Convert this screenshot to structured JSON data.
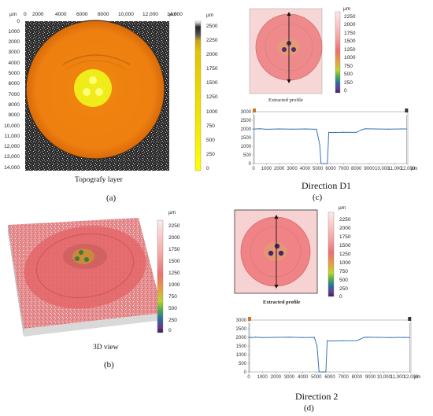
{
  "panel_a": {
    "unit_top": "µm",
    "unit_bar": "µm",
    "x_ticks": [
      "0",
      "2000",
      "4000",
      "6000",
      "8000",
      "10,000",
      "12,000",
      "14,000"
    ],
    "y_ticks": [
      "0",
      "1000",
      "2000",
      "3000",
      "4000",
      "5000",
      "6000",
      "7000",
      "8000",
      "9000",
      "10,000",
      "11,000",
      "12,000",
      "13,000",
      "14,000"
    ],
    "colorbar_ticks": [
      "2500",
      "2250",
      "2000",
      "1750",
      "1500",
      "1250",
      "1000",
      "750",
      "500",
      "250",
      "0"
    ],
    "caption": "Topografy layer",
    "label": "(a)"
  },
  "panel_b": {
    "unit": "µm",
    "colorbar_ticks": [
      "2250",
      "2000",
      "1750",
      "1500",
      "1250",
      "1000",
      "750",
      "500",
      "250",
      "0"
    ],
    "caption": "3D view",
    "label": "(b)"
  },
  "panel_c": {
    "unit": "µm",
    "colorbar_ticks": [
      "2250",
      "2000",
      "1750",
      "1500",
      "1250",
      "1000",
      "750",
      "500",
      "250",
      "0"
    ],
    "image_caption": "Extracted profile",
    "profile_y_ticks": [
      "3000",
      "2500",
      "2000",
      "1500",
      "1000",
      "500",
      "0"
    ],
    "profile_x_ticks": [
      "0",
      "1000",
      "2000",
      "3000",
      "4000",
      "5000",
      "6000",
      "7000",
      "8000",
      "9000",
      "10,000",
      "11,000",
      "12,000"
    ],
    "profile_unit": "µm",
    "caption": "Direction D1",
    "label": "(c)"
  },
  "panel_d": {
    "unit": "µm",
    "colorbar_ticks": [
      "2250",
      "2000",
      "1750",
      "1500",
      "1250",
      "1000",
      "750",
      "500",
      "250",
      "0"
    ],
    "image_caption": "Extracted profile",
    "profile_y_ticks": [
      "3000",
      "2500",
      "2000",
      "1500",
      "1000",
      "500",
      "0"
    ],
    "profile_x_ticks": [
      "0",
      "1000",
      "2000",
      "3000",
      "4000",
      "5000",
      "6000",
      "7000",
      "8000",
      "9000",
      "10,000",
      "11,000",
      "12,000"
    ],
    "profile_unit": "µm",
    "caption": "Direction 2",
    "label": "(d)"
  },
  "chart_data": [
    {
      "type": "line",
      "x": [
        0,
        200,
        500,
        1000,
        2000,
        3000,
        4000,
        4900,
        5150,
        5250,
        5500,
        5750,
        5850,
        6100,
        7000,
        8000,
        8400,
        8700,
        9500,
        10500,
        11500,
        11900
      ],
      "y": [
        1990,
        2000,
        2010,
        1980,
        2000,
        1990,
        2000,
        1980,
        1100,
        0,
        0,
        0,
        1800,
        1790,
        1810,
        1800,
        1950,
        2010,
        2000,
        1990,
        2000,
        2000
      ],
      "xlim": [
        0,
        12000
      ],
      "ylim": [
        0,
        3000
      ]
    },
    {
      "type": "line",
      "x": [
        0,
        200,
        500,
        1000,
        2000,
        3000,
        4000,
        4850,
        5050,
        5200,
        5500,
        5700,
        5800,
        6100,
        7000,
        8000,
        8500,
        8700,
        9500,
        10500,
        11500,
        11900
      ],
      "y": [
        2000,
        1990,
        2010,
        1990,
        2000,
        2010,
        1990,
        2000,
        1500,
        0,
        0,
        0,
        1800,
        1790,
        1800,
        1810,
        1990,
        2010,
        2000,
        1990,
        2000,
        1990
      ],
      "xlim": [
        0,
        12000
      ],
      "ylim": [
        0,
        3000
      ]
    }
  ]
}
